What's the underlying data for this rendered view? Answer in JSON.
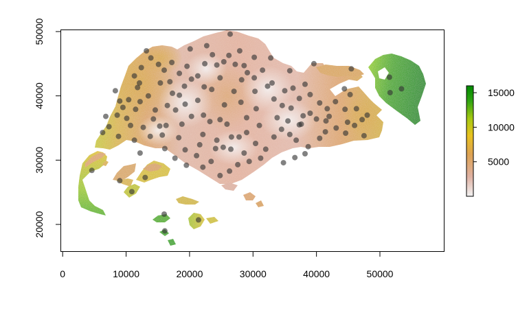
{
  "chart_data": {
    "type": "map",
    "x_ticks": [
      0,
      10000,
      20000,
      30000,
      40000,
      50000
    ],
    "y_ticks": [
      20000,
      30000,
      40000,
      50000
    ],
    "xlim": [
      -500,
      59000
    ],
    "ylim": [
      15500,
      50400
    ],
    "legend": {
      "position": "right",
      "ticks": [
        5000,
        10000,
        15000
      ],
      "range": [
        0,
        16000
      ],
      "colors": [
        "#f2f2f2",
        "#deb0a1",
        "#dda252",
        "#e8c21f",
        "#a8c912",
        "#31a412",
        "#008a00"
      ]
    },
    "points_color": "#333333",
    "points": [
      [
        4600,
        28400
      ],
      [
        6300,
        34300
      ],
      [
        6800,
        36800
      ],
      [
        7300,
        35200
      ],
      [
        8600,
        37000
      ],
      [
        8800,
        33700
      ],
      [
        9500,
        38200
      ],
      [
        10100,
        36500
      ],
      [
        10700,
        35400
      ],
      [
        11300,
        33100
      ],
      [
        12200,
        39100
      ],
      [
        12700,
        35100
      ],
      [
        12200,
        31100
      ],
      [
        13500,
        40000
      ],
      [
        14300,
        36400
      ],
      [
        15300,
        35300
      ],
      [
        16300,
        35400
      ],
      [
        15700,
        33900
      ],
      [
        16500,
        38500
      ],
      [
        17300,
        40400
      ],
      [
        18400,
        40100
      ],
      [
        19300,
        38700
      ],
      [
        21300,
        39300
      ],
      [
        22200,
        37000
      ],
      [
        23200,
        36000
      ],
      [
        24800,
        36300
      ],
      [
        25900,
        35600
      ],
      [
        22100,
        34000
      ],
      [
        24300,
        33100
      ],
      [
        25300,
        32000
      ],
      [
        26500,
        31700
      ],
      [
        27800,
        33600
      ],
      [
        29000,
        34300
      ],
      [
        30400,
        32600
      ],
      [
        32000,
        31700
      ],
      [
        33300,
        33600
      ],
      [
        34500,
        34800
      ],
      [
        35800,
        34000
      ],
      [
        36800,
        33100
      ],
      [
        37600,
        35600
      ],
      [
        38700,
        32100
      ],
      [
        40500,
        33400
      ],
      [
        41400,
        34400
      ],
      [
        43100,
        35000
      ],
      [
        44600,
        34200
      ],
      [
        46000,
        35400
      ],
      [
        47200,
        36300
      ],
      [
        48000,
        37000
      ],
      [
        46300,
        38000
      ],
      [
        45300,
        40200
      ],
      [
        44400,
        41100
      ],
      [
        43000,
        39100
      ],
      [
        41700,
        38000
      ],
      [
        40500,
        38900
      ],
      [
        39000,
        40200
      ],
      [
        38200,
        41800
      ],
      [
        37300,
        39600
      ],
      [
        36000,
        38100
      ],
      [
        34600,
        38500
      ],
      [
        33300,
        39500
      ],
      [
        32300,
        41500
      ],
      [
        31500,
        44000
      ],
      [
        30200,
        42800
      ],
      [
        29100,
        43600
      ],
      [
        28200,
        42500
      ],
      [
        27200,
        44900
      ],
      [
        26200,
        46300
      ],
      [
        25400,
        45300
      ],
      [
        24300,
        44800
      ],
      [
        23600,
        46400
      ],
      [
        22400,
        45000
      ],
      [
        21300,
        43100
      ],
      [
        20300,
        42600
      ],
      [
        19600,
        44600
      ],
      [
        18400,
        43500
      ],
      [
        17200,
        45200
      ],
      [
        16000,
        44000
      ],
      [
        15100,
        44900
      ],
      [
        13900,
        45900
      ],
      [
        13200,
        47000
      ],
      [
        12400,
        44400
      ],
      [
        11300,
        43100
      ],
      [
        11800,
        41300
      ],
      [
        10400,
        39400
      ],
      [
        9000,
        39200
      ],
      [
        8300,
        40800
      ],
      [
        16100,
        31800
      ],
      [
        17700,
        30300
      ],
      [
        19500,
        29200
      ],
      [
        21100,
        30700
      ],
      [
        22100,
        28900
      ],
      [
        23400,
        29800
      ],
      [
        24800,
        27600
      ],
      [
        26300,
        28300
      ],
      [
        27600,
        29300
      ],
      [
        29400,
        29800
      ],
      [
        31200,
        30300
      ],
      [
        34800,
        29600
      ],
      [
        36600,
        30400
      ],
      [
        38200,
        31000
      ],
      [
        9000,
        26800
      ],
      [
        10900,
        25100
      ],
      [
        13000,
        27300
      ],
      [
        16000,
        21600
      ],
      [
        16100,
        19000
      ],
      [
        21400,
        20700
      ],
      [
        51500,
        42900
      ],
      [
        51600,
        40500
      ],
      [
        53400,
        41100
      ],
      [
        45500,
        44200
      ],
      [
        39600,
        45000
      ],
      [
        35800,
        43900
      ],
      [
        37900,
        36900
      ],
      [
        40000,
        36400
      ],
      [
        28100,
        39000
      ],
      [
        30500,
        38000
      ],
      [
        33800,
        36600
      ],
      [
        27000,
        40700
      ],
      [
        20300,
        36800
      ],
      [
        18300,
        33500
      ],
      [
        13800,
        33700
      ],
      [
        14600,
        37800
      ],
      [
        11500,
        37900
      ],
      [
        18800,
        35600
      ],
      [
        23500,
        41000
      ],
      [
        25500,
        38600
      ],
      [
        31000,
        35400
      ],
      [
        35500,
        36100
      ],
      [
        42000,
        36800
      ],
      [
        44500,
        37900
      ],
      [
        47500,
        33800
      ],
      [
        29000,
        36600
      ],
      [
        33000,
        42000
      ],
      [
        36300,
        41200
      ],
      [
        39000,
        37300
      ],
      [
        26600,
        33600
      ],
      [
        24100,
        31800
      ],
      [
        21600,
        32400
      ],
      [
        19300,
        31600
      ],
      [
        28600,
        31100
      ],
      [
        17800,
        37800
      ],
      [
        15400,
        42000
      ],
      [
        12100,
        42000
      ],
      [
        27900,
        47000
      ],
      [
        30200,
        46000
      ],
      [
        32800,
        45900
      ],
      [
        22700,
        47800
      ],
      [
        20100,
        47300
      ],
      [
        24800,
        42800
      ],
      [
        28600,
        44700
      ],
      [
        35000,
        40800
      ],
      [
        41500,
        36100
      ],
      [
        44900,
        35900
      ],
      [
        37300,
        35500
      ],
      [
        30300,
        40700
      ],
      [
        26400,
        49600
      ],
      [
        22300,
        41400
      ],
      [
        19200,
        41500
      ],
      [
        16900,
        42200
      ]
    ]
  }
}
